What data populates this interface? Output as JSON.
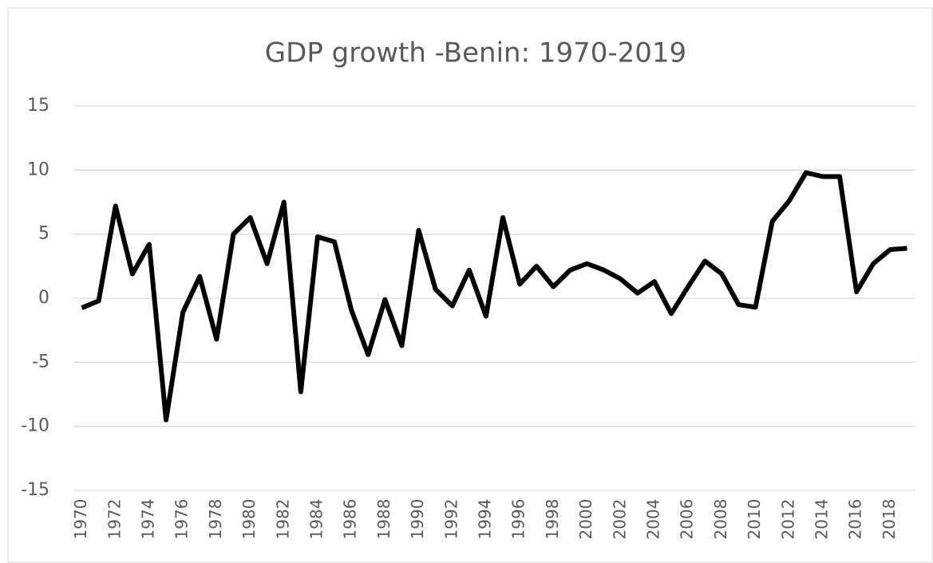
{
  "chart_data": {
    "type": "line",
    "title": "GDP growth -Benin: 1970-2019",
    "categories": [
      "1970",
      null,
      "1972",
      null,
      "1974",
      null,
      "1976",
      null,
      "1978",
      null,
      "1980",
      null,
      "1982",
      null,
      "1984",
      null,
      "1986",
      null,
      "1988",
      null,
      "1990",
      null,
      "1992",
      null,
      "1994",
      null,
      "1996",
      null,
      "1998",
      null,
      "2000",
      null,
      "2002",
      null,
      "2004",
      null,
      "2006",
      null,
      "2008",
      null,
      "2010",
      null,
      "2012",
      null,
      "2014",
      null,
      "2016",
      null,
      "2018",
      null
    ],
    "values": [
      -0.75,
      -0.2,
      7.2,
      1.9,
      4.2,
      -9.5,
      -1.1,
      1.7,
      -3.2,
      5.0,
      6.3,
      2.7,
      7.5,
      -7.3,
      4.8,
      4.4,
      -0.9,
      -4.4,
      -0.1,
      -3.7,
      5.3,
      0.7,
      -0.6,
      2.2,
      -1.4,
      6.3,
      1.1,
      2.5,
      0.9,
      2.2,
      2.7,
      2.2,
      1.5,
      0.4,
      1.3,
      -1.2,
      0.9,
      2.9,
      1.9,
      -0.5,
      -0.7,
      6.0,
      7.6,
      9.8,
      9.5,
      9.5,
      0.5,
      2.7,
      3.8,
      3.9
    ],
    "color": "#000000",
    "ylim": [
      -15,
      15
    ],
    "yticks": [
      -15,
      -10,
      -5,
      0,
      5,
      10,
      15
    ],
    "grid": true
  }
}
